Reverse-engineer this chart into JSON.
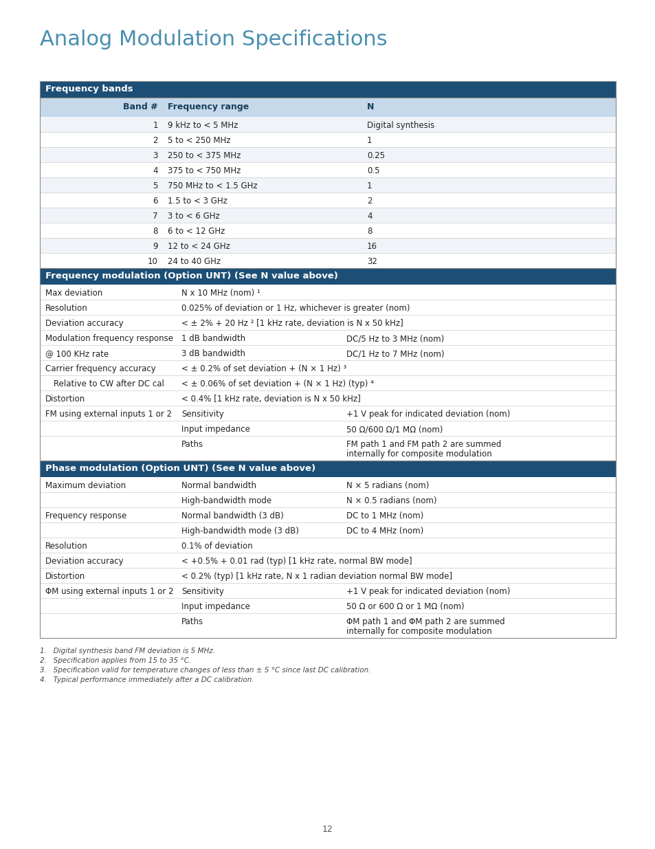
{
  "title": "Analog Modulation Specifications",
  "title_color": "#4a8faf",
  "page_number": "12",
  "header_bg": "#1d4f76",
  "header_fg": "#ffffff",
  "subheader_bg": "#c5d9ea",
  "subheader_fg": "#1a3f5c",
  "border_color": "#888888",
  "row_line_color": "#cccccc",
  "text_color": "#222222",
  "freq_bands_title": "Frequency bands",
  "fb_headers": [
    "Band #",
    "Frequency range",
    "N"
  ],
  "fb_rows": [
    [
      "1",
      "9 kHz to < 5 MHz",
      "Digital synthesis"
    ],
    [
      "2",
      "5 to < 250 MHz",
      "1"
    ],
    [
      "3",
      "250 to < 375 MHz",
      "0.25"
    ],
    [
      "4",
      "375 to < 750 MHz",
      "0.5"
    ],
    [
      "5",
      "750 MHz to < 1.5 GHz",
      "1"
    ],
    [
      "6",
      "1.5 to < 3 GHz",
      "2"
    ],
    [
      "7",
      "3 to < 6 GHz",
      "4"
    ],
    [
      "8",
      "6 to < 12 GHz",
      "8"
    ],
    [
      "9",
      "12 to < 24 GHz",
      "16"
    ],
    [
      "10",
      "24 to 40 GHz",
      "32"
    ]
  ],
  "fm_title": "Frequency modulation (Option UNT) (See N value above)",
  "fm_rows": [
    {
      "c1": "Max deviation",
      "c2": "N x 10 MHz (nom) ¹",
      "c3": "",
      "c1_rowspan": 1,
      "c1_indent": false
    },
    {
      "c1": "Resolution",
      "c2": "0.025% of deviation or 1 Hz, whichever is greater (nom)",
      "c3": "",
      "c1_rowspan": 1,
      "c1_indent": false
    },
    {
      "c1": "Deviation accuracy",
      "c2": "< ± 2% + 20 Hz ² [1 kHz rate, deviation is N x 50 kHz]",
      "c3": "",
      "c1_rowspan": 1,
      "c1_indent": false
    },
    {
      "c1": "Modulation frequency response",
      "c2": "1 dB bandwidth",
      "c3": "DC/5 Hz to 3 MHz (nom)",
      "c1_rowspan": 2,
      "c1_indent": false
    },
    {
      "c1": "@ 100 KHz rate",
      "c2": "3 dB bandwidth",
      "c3": "DC/1 Hz to 7 MHz (nom)",
      "c1_rowspan": 0,
      "c1_indent": false
    },
    {
      "c1": "Carrier frequency accuracy",
      "c2": "< ± 0.2% of set deviation + (N × 1 Hz) ³",
      "c3": "",
      "c1_rowspan": 1,
      "c1_indent": false
    },
    {
      "c1": "Relative to CW after DC cal",
      "c2": "< ± 0.06% of set deviation + (N × 1 Hz) (typ) ⁴",
      "c3": "",
      "c1_rowspan": 1,
      "c1_indent": true
    },
    {
      "c1": "Distortion",
      "c2": "< 0.4% [1 kHz rate, deviation is N x 50 kHz]",
      "c3": "",
      "c1_rowspan": 1,
      "c1_indent": false
    },
    {
      "c1": "FM using external inputs 1 or 2",
      "c2": "Sensitivity",
      "c3": "+1 V peak for indicated deviation (nom)",
      "c1_rowspan": 3,
      "c1_indent": false
    },
    {
      "c1": "",
      "c2": "Input impedance",
      "c3": "50 Ω/600 Ω/1 MΩ (nom)",
      "c1_rowspan": 0,
      "c1_indent": false
    },
    {
      "c1": "",
      "c2": "Paths",
      "c3": "FM path 1 and FM path 2 are summed\ninternally for composite modulation",
      "c1_rowspan": 0,
      "c1_indent": false
    }
  ],
  "pm_title": "Phase modulation (Option UNT) (See N value above)",
  "pm_rows": [
    {
      "c1": "Maximum deviation",
      "c2": "Normal bandwidth",
      "c3": "N × 5 radians (nom)",
      "c1_rowspan": 2,
      "c1_indent": false
    },
    {
      "c1": "",
      "c2": "High-bandwidth mode",
      "c3": "N × 0.5 radians (nom)",
      "c1_rowspan": 0,
      "c1_indent": false
    },
    {
      "c1": "Frequency response",
      "c2": "Normal bandwidth (3 dB)",
      "c3": "DC to 1 MHz (nom)",
      "c1_rowspan": 2,
      "c1_indent": false
    },
    {
      "c1": "",
      "c2": "High-bandwidth mode (3 dB)",
      "c3": "DC to 4 MHz (nom)",
      "c1_rowspan": 0,
      "c1_indent": false
    },
    {
      "c1": "Resolution",
      "c2": "0.1% of deviation",
      "c3": "",
      "c1_rowspan": 1,
      "c1_indent": false
    },
    {
      "c1": "Deviation accuracy",
      "c2": "< +0.5% + 0.01 rad (typ) [1 kHz rate, normal BW mode]",
      "c3": "",
      "c1_rowspan": 1,
      "c1_indent": false
    },
    {
      "c1": "Distortion",
      "c2": "< 0.2% (typ) [1 kHz rate, N x 1 radian deviation normal BW mode]",
      "c3": "",
      "c1_rowspan": 1,
      "c1_indent": false
    },
    {
      "c1": "ΦM using external inputs 1 or 2",
      "c2": "Sensitivity",
      "c3": "+1 V peak for indicated deviation (nom)",
      "c1_rowspan": 3,
      "c1_indent": false
    },
    {
      "c1": "",
      "c2": "Input impedance",
      "c3": "50 Ω or 600 Ω or 1 MΩ (nom)",
      "c1_rowspan": 0,
      "c1_indent": false
    },
    {
      "c1": "",
      "c2": "Paths",
      "c3": "ΦM path 1 and ΦM path 2 are summed\ninternally for composite modulation",
      "c1_rowspan": 0,
      "c1_indent": false
    }
  ],
  "footnotes": [
    "1.   Digital synthesis band FM deviation is 5 MHz.",
    "2.   Specification applies from 15 to 35 °C.",
    "3.   Specification valid for temperature changes of less than ± 5 °C since last DC calibration.",
    "4.   Typical performance immediately after a DC calibration."
  ]
}
